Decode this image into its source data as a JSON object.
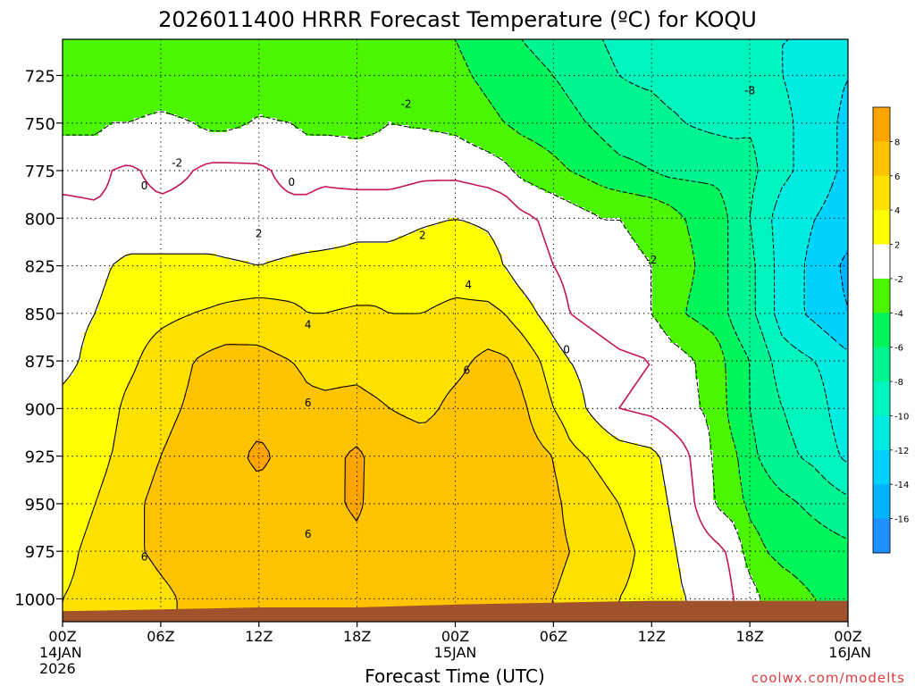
{
  "chart_data": {
    "type": "heatmap",
    "title": "2026011400 HRRR Forecast Temperature (ºC) for KOQU",
    "xlabel": "Forecast Time (UTC)",
    "ylabel": "",
    "credit": "coolwx.com/modelts",
    "yaxis": {
      "reversed": true,
      "ylim": [
        1012,
        706
      ],
      "ticks": [
        725,
        750,
        775,
        800,
        825,
        850,
        875,
        900,
        925,
        950,
        975,
        1000
      ]
    },
    "xaxis": {
      "xlim": [
        0,
        48
      ],
      "ticks": [
        {
          "hour": 0,
          "lines": [
            "00Z",
            "14JAN",
            "2026"
          ]
        },
        {
          "hour": 6,
          "lines": [
            "06Z"
          ]
        },
        {
          "hour": 12,
          "lines": [
            "12Z"
          ]
        },
        {
          "hour": 18,
          "lines": [
            "18Z"
          ]
        },
        {
          "hour": 24,
          "lines": [
            "00Z",
            "15JAN"
          ]
        },
        {
          "hour": 30,
          "lines": [
            "06Z"
          ]
        },
        {
          "hour": 36,
          "lines": [
            "12Z"
          ]
        },
        {
          "hour": 42,
          "lines": [
            "18Z"
          ]
        },
        {
          "hour": 48,
          "lines": [
            "00Z",
            "16JAN"
          ]
        }
      ]
    },
    "grid": true,
    "colorbar": {
      "placement": "right",
      "levels": [
        {
          "lo": -18,
          "hi": -16,
          "color": "#1e90ff"
        },
        {
          "lo": -16,
          "hi": -14,
          "color": "#00b2ff"
        },
        {
          "lo": -14,
          "hi": -12,
          "color": "#00d2ff"
        },
        {
          "lo": -12,
          "hi": -10,
          "color": "#00ebe1"
        },
        {
          "lo": -10,
          "hi": -8,
          "color": "#00f5be"
        },
        {
          "lo": -8,
          "hi": -6,
          "color": "#00f591"
        },
        {
          "lo": -6,
          "hi": -4,
          "color": "#00f55a"
        },
        {
          "lo": -4,
          "hi": -2,
          "color": "#4cf500"
        },
        {
          "lo": -2,
          "hi": 2,
          "color": "#ffffff"
        },
        {
          "lo": 2,
          "hi": 4,
          "color": "#ffff00"
        },
        {
          "lo": 4,
          "hi": 6,
          "color": "#ffe100"
        },
        {
          "lo": 6,
          "hi": 8,
          "color": "#ffc300"
        },
        {
          "lo": 8,
          "hi": 10,
          "color": "#ffa500"
        }
      ],
      "labels": [
        "8",
        "6",
        "4",
        "2",
        "-2",
        "-4",
        "-6",
        "-8",
        "-10",
        "-12",
        "-14",
        "-16"
      ]
    },
    "ground_color": "#a0522d",
    "ground_pressure": [
      [
        0,
        1006.5
      ],
      [
        6,
        1005.5
      ],
      [
        12,
        1004.5
      ],
      [
        18,
        1004.5
      ],
      [
        24,
        1003
      ],
      [
        30,
        1002
      ],
      [
        36,
        1001
      ],
      [
        42,
        1001
      ],
      [
        48,
        1001
      ]
    ],
    "temperature_hours": [
      0,
      2,
      3,
      4,
      6,
      8,
      9,
      10,
      12,
      14,
      15,
      16,
      18,
      19,
      20,
      22,
      24,
      26,
      27,
      28,
      30,
      31,
      32,
      33,
      34,
      36,
      37,
      38,
      40,
      41,
      42,
      43,
      44,
      46,
      48
    ],
    "temperature_levels": [
      1000,
      975,
      950,
      925,
      900,
      875,
      850,
      825,
      800,
      775,
      750,
      725,
      706
    ],
    "temperature": [
      [
        4,
        4.5,
        4.5,
        4.5,
        5.5,
        6.5,
        6.5,
        6.5,
        6.5,
        6.5,
        6.5,
        6.5,
        6.5,
        6.5,
        6.5,
        6.5,
        6.5,
        6.5,
        6.5,
        6.5,
        6,
        5.5,
        5,
        4.5,
        4,
        3.5,
        3,
        2,
        1.5,
        0,
        -1,
        -2.5,
        -3,
        -4,
        -4.5
      ],
      [
        3.5,
        4.5,
        5,
        5.5,
        6.5,
        7,
        7,
        7,
        7,
        6.5,
        6.5,
        7,
        7.5,
        7.5,
        7,
        6.5,
        6.8,
        7,
        7,
        6.5,
        6.5,
        6,
        5.5,
        5,
        4.5,
        3.5,
        2.5,
        1.5,
        0.5,
        -0.5,
        -3,
        -4,
        -4.5,
        -5,
        -5.5
      ],
      [
        3,
        4,
        4.5,
        5.5,
        6.5,
        7,
        7,
        7.3,
        7.5,
        7.3,
        7.2,
        7.5,
        8.3,
        7.5,
        7.2,
        7,
        7.2,
        7.3,
        7,
        6.8,
        6.5,
        5.5,
        5,
        4.5,
        4,
        3,
        2,
        1,
        -2.2,
        -3,
        -4.5,
        -5,
        -5.5,
        -6.5,
        -7.5
      ],
      [
        2.5,
        3.5,
        4,
        5,
        6,
        6.8,
        7,
        7.5,
        8.3,
        7.5,
        7.2,
        7.3,
        8.4,
        7.5,
        7.2,
        7,
        7,
        7.5,
        7.5,
        7,
        6,
        4.5,
        4,
        3.5,
        3,
        2.5,
        1.5,
        0.5,
        -2.5,
        -3.5,
        -5.5,
        -6.5,
        -7.5,
        -8.5,
        -10.5
      ],
      [
        2.5,
        3,
        3.5,
        4.5,
        5.5,
        6.3,
        6.8,
        7,
        7.5,
        7.2,
        6.5,
        6.3,
        6.5,
        6.3,
        6,
        5.5,
        6.5,
        7,
        7,
        6.5,
        4,
        3,
        2,
        1,
        0,
        -0.5,
        -1,
        -1.5,
        -2.5,
        -5,
        -6,
        -7,
        -8,
        -9,
        -11.5
      ],
      [
        1.5,
        2.5,
        3,
        3.5,
        5,
        6,
        6.5,
        6.8,
        6.5,
        6,
        5.5,
        5.5,
        5.5,
        5.2,
        5,
        5,
        5.5,
        6.5,
        6.3,
        5.5,
        3,
        2,
        1.5,
        1,
        0.5,
        0,
        -1,
        -1.5,
        -3,
        -5,
        -6,
        -7.5,
        -9,
        -10,
        -11.5
      ],
      [
        1.5,
        2,
        2.5,
        3,
        3.5,
        4,
        4.2,
        4.5,
        5,
        4.5,
        4,
        4,
        4.3,
        4.3,
        4,
        4,
        4.5,
        4.5,
        4,
        3,
        1,
        0,
        -0.5,
        -1,
        -1.5,
        -2,
        -3,
        -4,
        -5,
        -6.5,
        -7.5,
        -9,
        -11,
        -12.5,
        -14
      ],
      [
        1,
        1.5,
        2,
        2.5,
        2.5,
        2.5,
        2.5,
        2.3,
        2,
        2.4,
        2.6,
        2.5,
        2.5,
        2.5,
        2.5,
        2.8,
        3,
        2.5,
        2,
        1,
        0,
        -0.5,
        -1,
        -1.5,
        -1.5,
        -2,
        -2.5,
        -3.5,
        -5,
        -6.5,
        -7.5,
        -9,
        -11,
        -12.5,
        -14.5
      ],
      [
        0.5,
        0.3,
        0.3,
        0.5,
        0.5,
        0.5,
        0.5,
        0.5,
        0.5,
        0.5,
        0.5,
        1,
        1.5,
        1.5,
        1.5,
        1.8,
        2,
        1.8,
        1.5,
        0.5,
        -0.5,
        -1,
        -1.5,
        -2,
        -2,
        -2.5,
        -3,
        -4,
        -5,
        -6.5,
        -8,
        -9.5,
        -11,
        -12,
        -13
      ],
      [
        -0.5,
        -0.5,
        0,
        0.3,
        -0.5,
        0,
        0.5,
        0.5,
        0.3,
        -0.5,
        -0.5,
        -0.5,
        -1,
        -1,
        -1,
        -0.5,
        -0.5,
        -1,
        -1.5,
        -2.5,
        -3.5,
        -4,
        -4.5,
        -5,
        -5.5,
        -6,
        -6.5,
        -6.5,
        -6.5,
        -7,
        -7.5,
        -8.5,
        -9.5,
        -11,
        -12.5
      ],
      [
        -2.5,
        -2.5,
        -2,
        -2,
        -1.5,
        -2,
        -2.5,
        -2.5,
        -1.8,
        -2,
        -2.5,
        -2.5,
        -2.5,
        -2.3,
        -2,
        -2.2,
        -2.5,
        -3.5,
        -4,
        -4.5,
        -5,
        -5.5,
        -6,
        -6.5,
        -7,
        -7,
        -7.5,
        -8,
        -8.5,
        -8.5,
        -8.2,
        -8.5,
        -9.5,
        -11,
        -12.5
      ],
      [
        -3,
        -3.5,
        -3.5,
        -3.5,
        -3.5,
        -3.5,
        -3.5,
        -3.5,
        -3,
        -3.5,
        -3.5,
        -3.5,
        -3.5,
        -3.5,
        -3,
        -3,
        -3.5,
        -4.5,
        -5,
        -5.5,
        -6,
        -6.5,
        -7,
        -7.5,
        -8,
        -8.5,
        -9,
        -9,
        -9,
        -9,
        -9,
        -9.5,
        -10,
        -11,
        -12
      ],
      [
        -3.5,
        -3.5,
        -3.5,
        -3.5,
        -3.5,
        -3.5,
        -3.5,
        -3.5,
        -3.5,
        -3.5,
        -3.5,
        -3.5,
        -3.5,
        -3.5,
        -3.5,
        -3.5,
        -4,
        -5,
        -5.5,
        -6,
        -6.5,
        -7,
        -7.5,
        -8,
        -8.5,
        -9,
        -9.5,
        -10,
        -10,
        -10,
        -10,
        -10,
        -10,
        -10,
        -10
      ]
    ],
    "contour_labels": [
      {
        "text": "0",
        "hour": 5,
        "pressure": 783
      },
      {
        "text": "-2",
        "hour": 7,
        "pressure": 771
      },
      {
        "text": "0",
        "hour": 14,
        "pressure": 781
      },
      {
        "text": "2",
        "hour": 12,
        "pressure": 808
      },
      {
        "text": "-2",
        "hour": 21,
        "pressure": 740
      },
      {
        "text": "2",
        "hour": 22,
        "pressure": 809
      },
      {
        "text": "4",
        "hour": 15,
        "pressure": 856
      },
      {
        "text": "4",
        "hour": 24.8,
        "pressure": 835
      },
      {
        "text": "6",
        "hour": 15,
        "pressure": 897
      },
      {
        "text": "6",
        "hour": 24.7,
        "pressure": 880
      },
      {
        "text": "6",
        "hour": 15,
        "pressure": 966
      },
      {
        "text": "6",
        "hour": 5,
        "pressure": 978
      },
      {
        "text": "0",
        "hour": 30.8,
        "pressure": 869
      },
      {
        "text": "-2",
        "hour": 36,
        "pressure": 822
      },
      {
        "text": "-8",
        "hour": 42,
        "pressure": 733
      }
    ]
  }
}
